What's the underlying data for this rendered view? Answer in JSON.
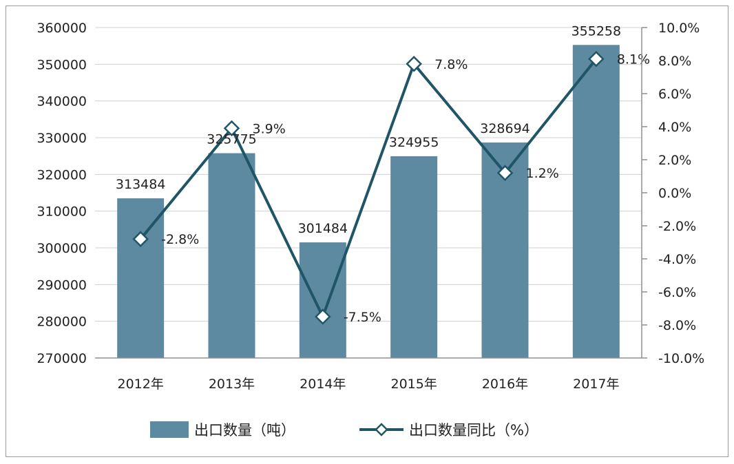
{
  "chart_data": {
    "type": "bar",
    "categories": [
      "2012年",
      "2013年",
      "2014年",
      "2015年",
      "2016年",
      "2017年"
    ],
    "series": [
      {
        "name": "出口数量（吨）",
        "type": "bar",
        "axis": "left",
        "values": [
          313484,
          325775,
          301484,
          324955,
          328694,
          355258
        ],
        "labels": [
          "313484",
          "325775",
          "301484",
          "324955",
          "328694",
          "355258"
        ],
        "color": "#5d8aa0"
      },
      {
        "name": "出口数量同比（%）",
        "type": "line",
        "axis": "right",
        "values": [
          -2.8,
          3.9,
          -7.5,
          7.8,
          1.2,
          8.1
        ],
        "labels": [
          "-2.8%",
          "3.9%",
          "-7.5%",
          "7.8%",
          "1.2%",
          "8.1%"
        ],
        "color": "#1f5567"
      }
    ],
    "y_left": {
      "min": 270000,
      "max": 360000,
      "ticks": [
        "270000",
        "280000",
        "290000",
        "300000",
        "310000",
        "320000",
        "330000",
        "340000",
        "350000",
        "360000"
      ]
    },
    "y_right": {
      "min": -10,
      "max": 10,
      "ticks": [
        "-10.0%",
        "-8.0%",
        "-6.0%",
        "-4.0%",
        "-2.0%",
        "0.0%",
        "2.0%",
        "4.0%",
        "6.0%",
        "8.0%",
        "10.0%"
      ]
    },
    "grid": true,
    "legend": "bottom"
  }
}
